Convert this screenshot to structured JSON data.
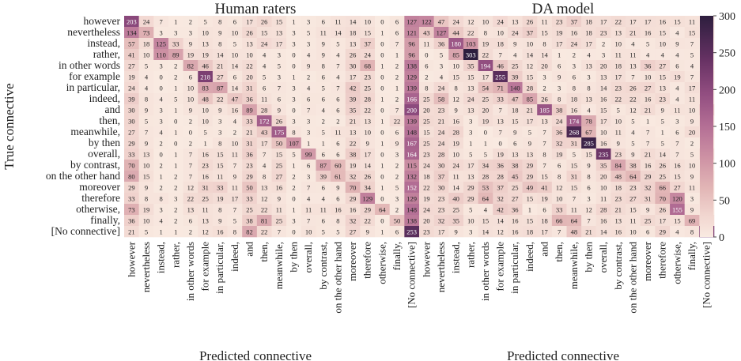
{
  "chart_data": {
    "type": "heatmap",
    "y_axis_label": "True connective",
    "categories": [
      "however",
      "nevertheless",
      "instead,",
      "rather,",
      "in other words",
      "for example",
      "in particular,",
      "indeed,",
      "and",
      "then,",
      "meanwhile,",
      "by then",
      "overall,",
      "by contrast,",
      "on the other hand",
      "moreover",
      "therefore",
      "otherwise,",
      "finally,",
      "[No connective]"
    ],
    "colorbar": {
      "min": 0,
      "max": 300,
      "ticks": [
        0,
        50,
        100,
        150,
        200,
        250,
        300
      ]
    },
    "panels": [
      {
        "title": "Human raters",
        "xlabel": "Predicted connective",
        "values": [
          [
            203,
            24,
            7,
            1,
            2,
            5,
            8,
            6,
            17,
            26,
            15,
            1,
            3,
            6,
            11,
            14,
            10,
            0,
            6,
            127
          ],
          [
            134,
            73,
            3,
            3,
            3,
            10,
            9,
            10,
            26,
            15,
            13,
            3,
            5,
            11,
            14,
            18,
            15,
            1,
            6,
            121
          ],
          [
            57,
            18,
            125,
            33,
            9,
            13,
            8,
            5,
            13,
            24,
            17,
            3,
            3,
            9,
            5,
            13,
            37,
            0,
            7,
            96
          ],
          [
            41,
            10,
            110,
            89,
            19,
            19,
            14,
            10,
            10,
            4,
            3,
            0,
            4,
            9,
            4,
            26,
            24,
            0,
            1,
            96
          ],
          [
            27,
            5,
            3,
            2,
            82,
            46,
            21,
            14,
            22,
            4,
            5,
            0,
            9,
            8,
            7,
            30,
            68,
            1,
            2,
            138
          ],
          [
            19,
            4,
            0,
            2,
            6,
            218,
            27,
            6,
            20,
            5,
            3,
            1,
            2,
            6,
            4,
            17,
            23,
            0,
            2,
            129
          ],
          [
            24,
            4,
            0,
            1,
            10,
            83,
            87,
            14,
            31,
            6,
            7,
            3,
            4,
            5,
            7,
            42,
            25,
            0,
            1,
            139
          ],
          [
            39,
            8,
            4,
            5,
            10,
            48,
            22,
            47,
            36,
            11,
            6,
            3,
            6,
            6,
            6,
            39,
            28,
            1,
            2,
            166
          ],
          [
            30,
            9,
            3,
            1,
            9,
            10,
            9,
            16,
            89,
            28,
            9,
            0,
            7,
            4,
            6,
            35,
            22,
            0,
            7,
            200
          ],
          [
            30,
            5,
            3,
            0,
            2,
            10,
            3,
            4,
            33,
            172,
            26,
            3,
            3,
            2,
            2,
            21,
            13,
            1,
            22,
            139
          ],
          [
            27,
            7,
            4,
            1,
            0,
            5,
            3,
            2,
            21,
            43,
            175,
            8,
            3,
            5,
            11,
            13,
            10,
            0,
            6,
            148
          ],
          [
            29,
            9,
            2,
            0,
            2,
            1,
            8,
            10,
            31,
            17,
            50,
            107,
            1,
            1,
            6,
            22,
            9,
            1,
            9,
            167
          ],
          [
            33,
            13,
            0,
            1,
            7,
            16,
            15,
            11,
            36,
            7,
            15,
            5,
            99,
            6,
            6,
            38,
            17,
            0,
            3,
            164
          ],
          [
            70,
            10,
            2,
            1,
            7,
            23,
            15,
            7,
            23,
            4,
            25,
            1,
            6,
            87,
            60,
            19,
            14,
            1,
            2,
            115
          ],
          [
            80,
            15,
            1,
            2,
            7,
            16,
            11,
            9,
            29,
            8,
            27,
            2,
            3,
            39,
            61,
            32,
            26,
            0,
            2,
            132
          ],
          [
            29,
            9,
            2,
            2,
            12,
            31,
            33,
            11,
            50,
            13,
            16,
            2,
            7,
            6,
            9,
            70,
            34,
            1,
            5,
            152
          ],
          [
            33,
            8,
            8,
            3,
            22,
            25,
            19,
            17,
            33,
            12,
            9,
            0,
            4,
            4,
            6,
            29,
            129,
            0,
            3,
            129
          ],
          [
            73,
            19,
            3,
            2,
            13,
            11,
            8,
            7,
            25,
            22,
            11,
            1,
            11,
            11,
            16,
            16,
            29,
            64,
            2,
            148
          ],
          [
            36,
            10,
            4,
            2,
            6,
            13,
            9,
            5,
            38,
            81,
            25,
            3,
            7,
            6,
            8,
            32,
            22,
            0,
            50,
            138
          ],
          [
            21,
            5,
            1,
            1,
            2,
            12,
            16,
            8,
            82,
            22,
            7,
            0,
            10,
            5,
            5,
            27,
            9,
            1,
            6,
            253
          ]
        ]
      },
      {
        "title": "DA model",
        "xlabel": "Predicted connective",
        "values": [
          [
            122,
            47,
            24,
            12,
            10,
            24,
            13,
            26,
            11,
            23,
            37,
            18,
            17,
            22,
            17,
            17,
            16,
            15,
            11,
            18
          ],
          [
            43,
            127,
            44,
            22,
            8,
            10,
            24,
            37,
            15,
            19,
            16,
            18,
            23,
            13,
            21,
            16,
            15,
            4,
            15,
            10
          ],
          [
            11,
            36,
            180,
            103,
            19,
            18,
            9,
            10,
            8,
            17,
            24,
            17,
            2,
            10,
            4,
            5,
            10,
            9,
            7,
            1
          ],
          [
            0,
            5,
            85,
            303,
            22,
            7,
            4,
            14,
            14,
            1,
            2,
            4,
            3,
            11,
            11,
            4,
            4,
            4,
            5,
            0
          ],
          [
            6,
            3,
            10,
            35,
            194,
            46,
            25,
            12,
            20,
            6,
            3,
            13,
            20,
            18,
            13,
            36,
            27,
            6,
            4,
            1
          ],
          [
            2,
            4,
            15,
            15,
            17,
            255,
            39,
            15,
            3,
            9,
            6,
            3,
            13,
            17,
            7,
            10,
            15,
            19,
            7,
            9
          ],
          [
            8,
            24,
            8,
            13,
            54,
            71,
            140,
            28,
            2,
            3,
            8,
            8,
            14,
            23,
            26,
            27,
            13,
            4,
            17,
            9
          ],
          [
            25,
            58,
            12,
            24,
            25,
            33,
            47,
            85,
            26,
            8,
            18,
            13,
            16,
            22,
            22,
            16,
            23,
            4,
            11,
            12
          ],
          [
            20,
            23,
            9,
            13,
            20,
            7,
            18,
            21,
            185,
            38,
            16,
            4,
            15,
            5,
            12,
            21,
            9,
            11,
            10,
            43
          ],
          [
            25,
            21,
            16,
            3,
            19,
            13,
            15,
            17,
            13,
            24,
            174,
            78,
            17,
            10,
            5,
            1,
            5,
            3,
            9,
            21
          ],
          [
            15,
            24,
            28,
            3,
            0,
            7,
            9,
            5,
            7,
            36,
            268,
            67,
            10,
            11,
            4,
            7,
            1,
            6,
            20,
            12
          ],
          [
            25,
            24,
            19,
            1,
            1,
            0,
            6,
            9,
            7,
            32,
            31,
            285,
            16,
            9,
            5,
            7,
            5,
            7,
            2,
            5
          ],
          [
            23,
            28,
            10,
            5,
            5,
            19,
            13,
            13,
            8,
            19,
            5,
            15,
            235,
            23,
            9,
            21,
            14,
            7,
            5,
            25
          ],
          [
            24,
            30,
            24,
            17,
            34,
            36,
            38,
            29,
            7,
            6,
            15,
            9,
            35,
            84,
            38,
            16,
            26,
            16,
            10,
            6
          ],
          [
            18,
            37,
            11,
            13,
            28,
            28,
            45,
            29,
            15,
            8,
            31,
            8,
            20,
            48,
            64,
            29,
            25,
            15,
            9,
            19
          ],
          [
            22,
            30,
            14,
            29,
            53,
            37,
            25,
            49,
            41,
            12,
            15,
            6,
            10,
            18,
            23,
            32,
            66,
            27,
            11,
            17
          ],
          [
            19,
            23,
            40,
            29,
            64,
            32,
            27,
            15,
            19,
            10,
            7,
            3,
            11,
            23,
            27,
            31,
            70,
            120,
            3,
            10
          ],
          [
            24,
            23,
            25,
            5,
            4,
            42,
            36,
            1,
            6,
            33,
            11,
            12,
            28,
            21,
            15,
            9,
            26,
            155,
            9,
            8
          ],
          [
            20,
            32,
            35,
            10,
            15,
            14,
            16,
            15,
            18,
            66,
            64,
            7,
            16,
            13,
            11,
            25,
            17,
            15,
            69,
            22
          ],
          [
            23,
            17,
            9,
            3,
            14,
            12,
            16,
            18,
            17,
            7,
            48,
            21,
            14,
            16,
            10,
            6,
            29,
            4,
            8,
            213
          ]
        ]
      }
    ]
  }
}
